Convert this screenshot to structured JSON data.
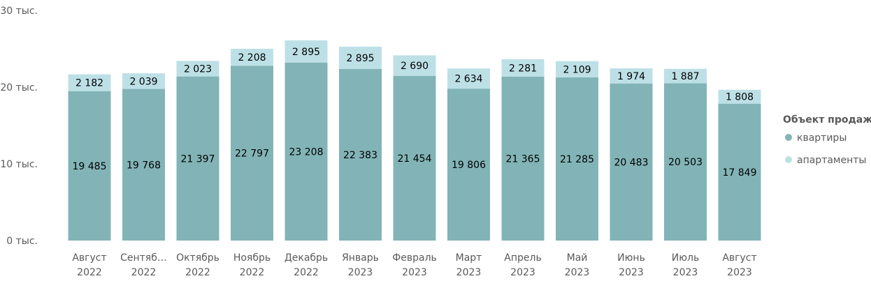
{
  "chart_data": {
    "type": "bar",
    "stacked": true,
    "categories": [
      [
        "Август",
        "2022"
      ],
      [
        "Сентябрь",
        "2022"
      ],
      [
        "Октябрь",
        "2022"
      ],
      [
        "Ноябрь",
        "2022"
      ],
      [
        "Декабрь",
        "2022"
      ],
      [
        "Январь",
        "2023"
      ],
      [
        "Февраль",
        "2023"
      ],
      [
        "Март",
        "2023"
      ],
      [
        "Апрель",
        "2023"
      ],
      [
        "Май",
        "2023"
      ],
      [
        "Июнь",
        "2023"
      ],
      [
        "Июль",
        "2023"
      ],
      [
        "Август",
        "2023"
      ]
    ],
    "category_display": [
      [
        "Август",
        "2022"
      ],
      [
        "Сентяб…",
        "2022"
      ],
      [
        "Октябрь",
        "2022"
      ],
      [
        "Ноябрь",
        "2022"
      ],
      [
        "Декабрь",
        "2022"
      ],
      [
        "Январь",
        "2023"
      ],
      [
        "Февраль",
        "2023"
      ],
      [
        "Март",
        "2023"
      ],
      [
        "Апрель",
        "2023"
      ],
      [
        "Май",
        "2023"
      ],
      [
        "Июнь",
        "2023"
      ],
      [
        "Июль",
        "2023"
      ],
      [
        "Август",
        "2023"
      ]
    ],
    "series": [
      {
        "name": "квартиры",
        "color": "#82b4b7",
        "values": [
          19485,
          19768,
          21397,
          22797,
          23208,
          22383,
          21454,
          19806,
          21365,
          21285,
          20483,
          20503,
          17849
        ],
        "labels": [
          "19 485",
          "19 768",
          "21 397",
          "22 797",
          "23 208",
          "22 383",
          "21 454",
          "19 806",
          "21 365",
          "21 285",
          "20 483",
          "20 503",
          "17 849"
        ]
      },
      {
        "name": "апартаменты",
        "color": "#bde0e6",
        "values": [
          2182,
          2039,
          2023,
          2208,
          2895,
          2895,
          2690,
          2634,
          2281,
          2109,
          1974,
          1887,
          1808
        ],
        "labels": [
          "2 182",
          "2 039",
          "2 023",
          "2 208",
          "2 895",
          "2 895",
          "2 690",
          "2 634",
          "2 281",
          "2 109",
          "1 974",
          "1 887",
          "1 808"
        ]
      }
    ],
    "ylim": [
      0,
      30000
    ],
    "yticks": [
      0,
      10000,
      20000,
      30000
    ],
    "ytick_labels": [
      "0 тыс.",
      "10 тыс.",
      "20 тыс.",
      "30 тыс."
    ],
    "grid": false,
    "legend": {
      "title": "Объект продаж",
      "position": "right"
    }
  }
}
